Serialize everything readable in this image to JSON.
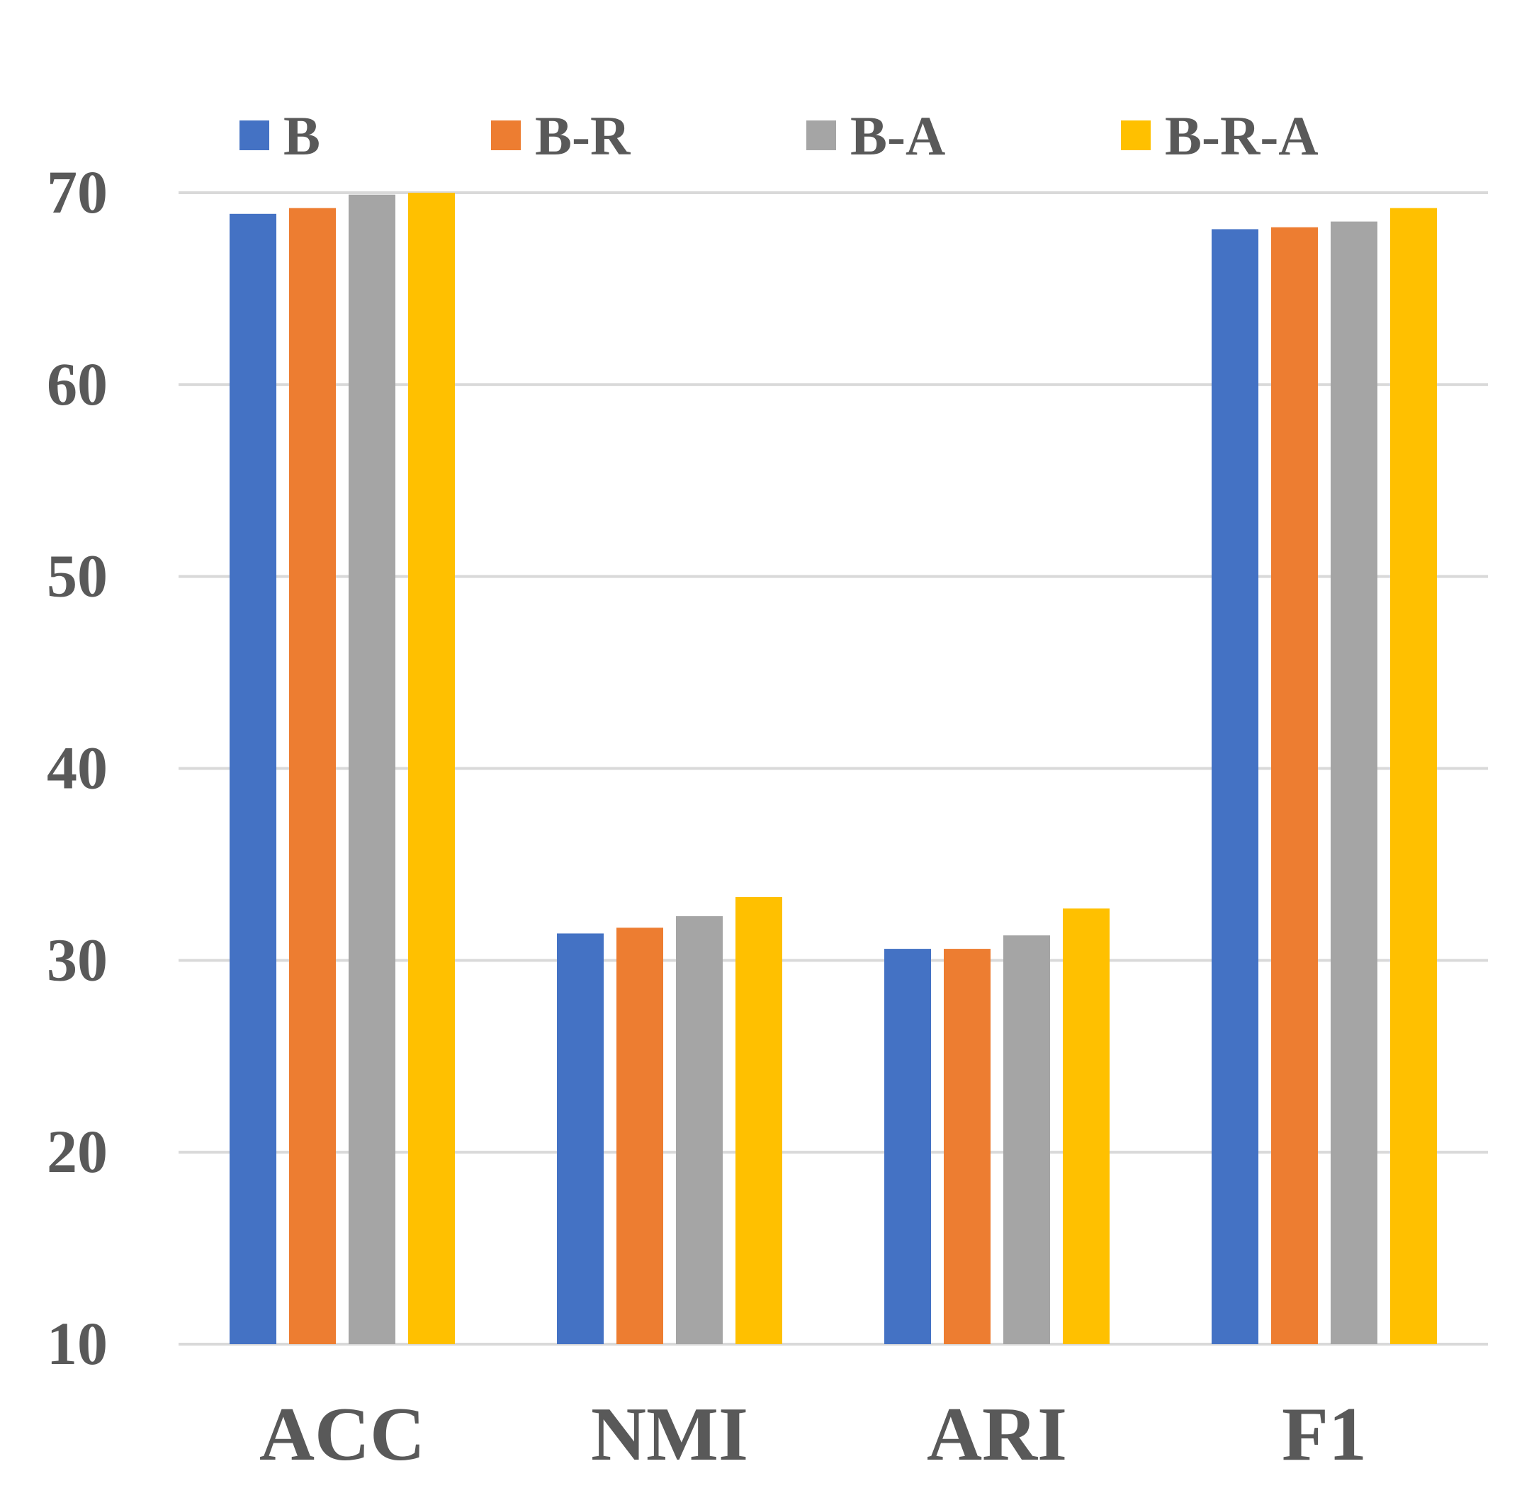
{
  "chart_data": {
    "type": "bar",
    "title": "",
    "xlabel": "",
    "ylabel": "",
    "categories": [
      "ACC",
      "NMI",
      "ARI",
      "F1"
    ],
    "series": [
      {
        "name": "B",
        "color": "#4472C4",
        "values": [
          68.9,
          31.4,
          30.6,
          68.1
        ]
      },
      {
        "name": "B-R",
        "color": "#ED7D31",
        "values": [
          69.2,
          31.7,
          30.6,
          68.2
        ]
      },
      {
        "name": "B-A",
        "color": "#A5A5A5",
        "values": [
          69.9,
          32.3,
          31.3,
          68.5
        ]
      },
      {
        "name": "B-R-A",
        "color": "#FFC000",
        "values": [
          70.0,
          33.3,
          32.7,
          69.2
        ]
      }
    ],
    "ylim": [
      10,
      70
    ],
    "yticks": [
      "10",
      "20",
      "30",
      "40",
      "50",
      "60",
      "70"
    ],
    "grid": true,
    "legend_position": "top",
    "gridline_color": "#D9D9D9",
    "text_color": "#595959"
  }
}
